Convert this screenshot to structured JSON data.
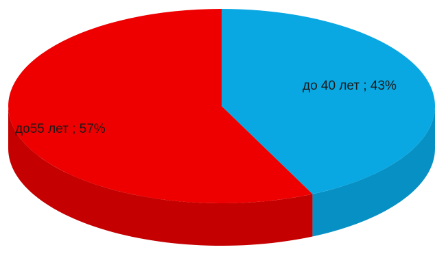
{
  "chart_data": {
    "type": "pie",
    "style": "3d",
    "title": "",
    "slices": [
      {
        "label": "до 40 лет",
        "value": 43,
        "display": "до 40 лет ; 43%",
        "color": "#0aa8e2",
        "side_color": "#0790c4"
      },
      {
        "label": "до55 лет",
        "value": 57,
        "display": "до55 лет ; 57%",
        "color": "#ee0000",
        "side_color": "#c40000"
      }
    ],
    "legend": "none"
  }
}
